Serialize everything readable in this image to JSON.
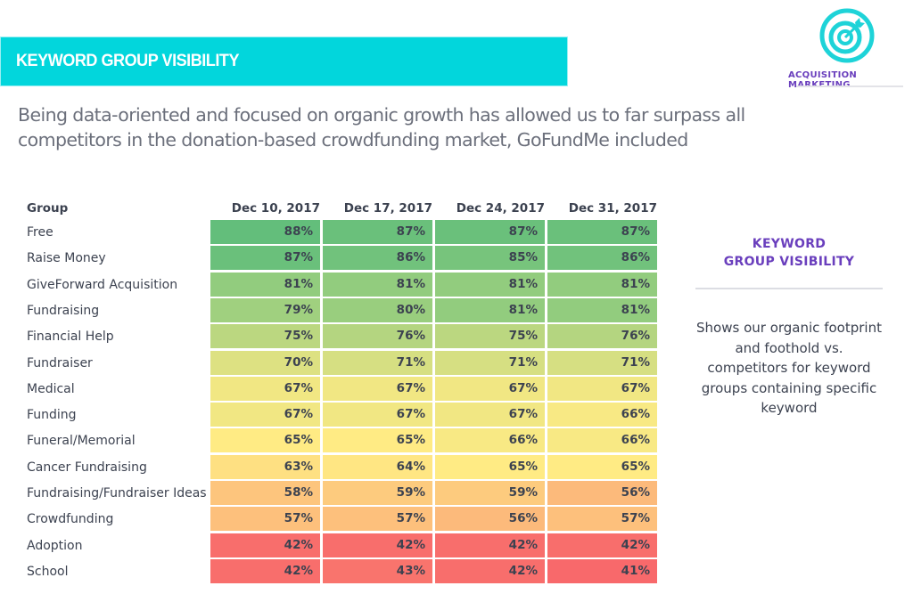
{
  "header": {
    "title": "KEYWORD GROUP VISIBILITY",
    "brand_color": "#02d6dc",
    "logo_icon": "target-arrow-icon",
    "logo_label": "ACQUISITION MARKETING",
    "accent_color": "#6a3fbd"
  },
  "subtitle": "Being data-oriented and focused on organic growth has allowed us to far surpass all competitors in the donation-based crowdfunding market, GoFundMe included",
  "sidebar": {
    "title_line1": "KEYWORD",
    "title_line2": "GROUP VISIBILITY",
    "description": "Shows our organic footprint and foothold vs. competitors for keyword groups containing specific keyword"
  },
  "chart_data": {
    "type": "heatmap",
    "title": "Keyword Group Visibility",
    "row_header": "Group",
    "columns": [
      "Dec 10, 2017",
      "Dec 17, 2017",
      "Dec 24, 2017",
      "Dec 31, 2017"
    ],
    "unit": "%",
    "color_scale": {
      "low": "#f8696b",
      "mid": "#ffeb84",
      "high": "#63be7b"
    },
    "rows": [
      {
        "label": "Free",
        "values": [
          88,
          87,
          87,
          87
        ]
      },
      {
        "label": "Raise Money",
        "values": [
          87,
          86,
          85,
          86
        ]
      },
      {
        "label": "GiveForward Acquisition",
        "values": [
          81,
          81,
          81,
          81
        ]
      },
      {
        "label": "Fundraising",
        "values": [
          79,
          80,
          81,
          81
        ]
      },
      {
        "label": "Financial Help",
        "values": [
          75,
          76,
          75,
          76
        ]
      },
      {
        "label": "Fundraiser",
        "values": [
          70,
          71,
          71,
          71
        ]
      },
      {
        "label": "Medical",
        "values": [
          67,
          67,
          67,
          67
        ]
      },
      {
        "label": "Funding",
        "values": [
          67,
          67,
          67,
          66
        ]
      },
      {
        "label": "Funeral/Memorial",
        "values": [
          65,
          65,
          66,
          66
        ]
      },
      {
        "label": "Cancer Fundraising",
        "values": [
          63,
          64,
          65,
          65
        ]
      },
      {
        "label": "Fundraising/Fundraiser Ideas",
        "values": [
          58,
          59,
          59,
          56
        ]
      },
      {
        "label": "Crowdfunding",
        "values": [
          57,
          57,
          56,
          57
        ]
      },
      {
        "label": "Adoption",
        "values": [
          42,
          42,
          42,
          42
        ]
      },
      {
        "label": "School",
        "values": [
          42,
          43,
          42,
          41
        ]
      }
    ]
  }
}
